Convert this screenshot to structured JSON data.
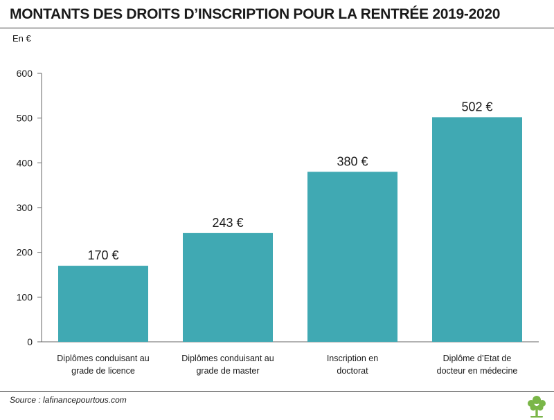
{
  "title": "MONTANTS DES DROITS D’INSCRIPTION POUR LA RENTRÉE 2019-2020",
  "unit_label": "En €",
  "source": "Source : lafinancepourtous.com",
  "colors": {
    "bar": "#40a9b3",
    "axis": "#666666",
    "text": "#1a1a1a",
    "logo": "#7ab648"
  },
  "chart_data": {
    "type": "bar",
    "title": "MONTANTS DES DROITS D’INSCRIPTION POUR LA RENTRÉE 2019-2020",
    "ylabel": "En €",
    "xlabel": "",
    "ylim": [
      0,
      600
    ],
    "yticks": [
      0,
      100,
      200,
      300,
      400,
      500,
      600
    ],
    "grid": false,
    "categories": [
      [
        "Diplômes conduisant au",
        "grade de licence"
      ],
      [
        "Diplômes conduisant au",
        "grade de master"
      ],
      [
        "Inscription en",
        "doctorat"
      ],
      [
        "Diplôme d’Etat de",
        "docteur en médecine"
      ]
    ],
    "values": [
      170,
      243,
      380,
      502
    ],
    "data_labels": [
      "170 €",
      "243 €",
      "380 €",
      "502 €"
    ]
  }
}
